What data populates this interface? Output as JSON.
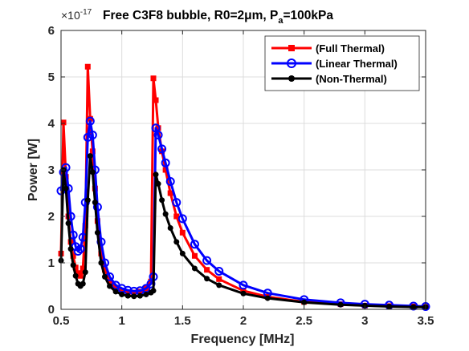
{
  "chart_data": {
    "type": "line",
    "title": "Free C3F8 bubble, R0=2μm, P",
    "title_sub": "a",
    "title_tail": "=100kPa",
    "xlabel": "Frequency [MHz]",
    "ylabel": "Power [W]",
    "y_multiplier": "×10",
    "y_exponent": "-17",
    "xlim": [
      0.5,
      3.5
    ],
    "ylim": [
      0,
      6
    ],
    "xticks": [
      0.5,
      1,
      1.5,
      2,
      2.5,
      3,
      3.5
    ],
    "xtick_labels": [
      "0.5",
      "1",
      "1.5",
      "2",
      "2.5",
      "3",
      "3.5"
    ],
    "yticks": [
      0,
      1,
      2,
      3,
      4,
      5,
      6
    ],
    "ytick_labels": [
      "0",
      "1",
      "2",
      "3",
      "4",
      "5",
      "6"
    ],
    "grid": true,
    "legend_position": "top-right",
    "series": [
      {
        "name": "(Full Thermal)",
        "color": "#ff0000",
        "marker": "square",
        "x": [
          0.5,
          0.52,
          0.54,
          0.56,
          0.58,
          0.6,
          0.62,
          0.64,
          0.66,
          0.68,
          0.7,
          0.72,
          0.74,
          0.76,
          0.78,
          0.8,
          0.83,
          0.86,
          0.9,
          0.95,
          1.0,
          1.05,
          1.1,
          1.15,
          1.2,
          1.24,
          1.26,
          1.28,
          1.3,
          1.33,
          1.36,
          1.4,
          1.45,
          1.5,
          1.6,
          1.7,
          1.8,
          2.0,
          2.2,
          2.5,
          2.8,
          3.0,
          3.2,
          3.4,
          3.5
        ],
        "y": [
          1.2,
          4.02,
          2.85,
          2.0,
          1.45,
          1.15,
          0.9,
          0.78,
          0.72,
          0.88,
          1.8,
          5.22,
          4.1,
          3.4,
          2.6,
          1.9,
          1.2,
          0.85,
          0.62,
          0.45,
          0.4,
          0.37,
          0.36,
          0.38,
          0.45,
          0.6,
          4.97,
          4.5,
          3.9,
          3.4,
          3.0,
          2.5,
          2.0,
          1.65,
          1.15,
          0.85,
          0.65,
          0.4,
          0.27,
          0.16,
          0.11,
          0.08,
          0.07,
          0.06,
          0.05
        ]
      },
      {
        "name": "(Linear Thermal)",
        "color": "#0000ff",
        "marker": "circle",
        "x": [
          0.5,
          0.52,
          0.54,
          0.56,
          0.58,
          0.6,
          0.62,
          0.64,
          0.66,
          0.68,
          0.7,
          0.72,
          0.74,
          0.76,
          0.78,
          0.8,
          0.83,
          0.86,
          0.9,
          0.95,
          1.0,
          1.05,
          1.1,
          1.15,
          1.2,
          1.24,
          1.26,
          1.28,
          1.3,
          1.33,
          1.36,
          1.4,
          1.45,
          1.5,
          1.6,
          1.7,
          1.8,
          2.0,
          2.2,
          2.5,
          2.8,
          3.0,
          3.2,
          3.4,
          3.5
        ],
        "y": [
          2.55,
          2.95,
          3.05,
          2.6,
          2.0,
          1.6,
          1.35,
          1.25,
          1.3,
          1.55,
          2.3,
          3.7,
          4.05,
          3.75,
          3.0,
          2.2,
          1.45,
          1.0,
          0.7,
          0.52,
          0.45,
          0.41,
          0.39,
          0.4,
          0.45,
          0.55,
          0.7,
          3.9,
          3.75,
          3.45,
          3.15,
          2.75,
          2.3,
          1.95,
          1.4,
          1.05,
          0.82,
          0.52,
          0.35,
          0.21,
          0.14,
          0.11,
          0.09,
          0.07,
          0.06
        ]
      },
      {
        "name": "(Non-Thermal)",
        "color": "#000000",
        "marker": "circle-filled",
        "x": [
          0.5,
          0.52,
          0.54,
          0.56,
          0.58,
          0.6,
          0.62,
          0.64,
          0.66,
          0.68,
          0.7,
          0.72,
          0.74,
          0.76,
          0.78,
          0.8,
          0.83,
          0.86,
          0.9,
          0.95,
          1.0,
          1.05,
          1.1,
          1.15,
          1.2,
          1.24,
          1.26,
          1.28,
          1.3,
          1.33,
          1.36,
          1.4,
          1.45,
          1.5,
          1.6,
          1.7,
          1.8,
          2.0,
          2.2,
          2.5,
          2.8,
          3.0,
          3.2,
          3.4,
          3.5
        ],
        "y": [
          1.05,
          3.0,
          2.6,
          1.85,
          1.3,
          0.95,
          0.72,
          0.55,
          0.5,
          0.55,
          0.8,
          2.35,
          3.3,
          2.95,
          2.3,
          1.65,
          1.0,
          0.7,
          0.5,
          0.38,
          0.32,
          0.29,
          0.28,
          0.29,
          0.32,
          0.36,
          0.4,
          2.9,
          2.7,
          2.35,
          2.05,
          1.75,
          1.45,
          1.2,
          0.88,
          0.66,
          0.52,
          0.34,
          0.24,
          0.15,
          0.1,
          0.08,
          0.06,
          0.05,
          0.05
        ]
      }
    ]
  }
}
